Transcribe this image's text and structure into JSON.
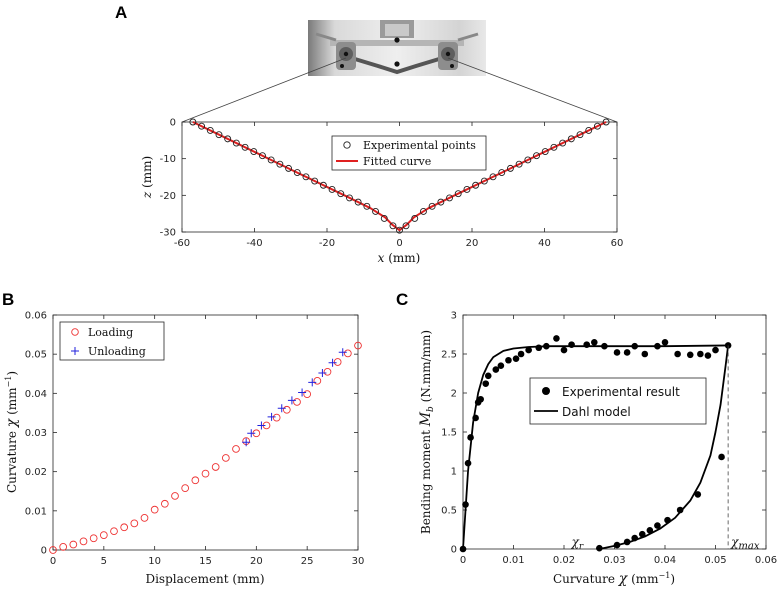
{
  "panels": {
    "a": "A",
    "b": "B",
    "c": "C"
  },
  "chart_data": [
    {
      "id": "A",
      "type": "scatter",
      "title": "",
      "xlabel_var": "x",
      "xlabel_unit": " (mm)",
      "ylabel_var": "z",
      "ylabel_unit": " (mm)",
      "xlim": [
        -60,
        60
      ],
      "ylim": [
        -30,
        0
      ],
      "xticks": [
        -60,
        -40,
        -20,
        0,
        20,
        40,
        60
      ],
      "yticks": [
        0,
        -10,
        -20,
        -30
      ],
      "legend": [
        "Experimental points",
        "Fitted curve"
      ],
      "series": [
        {
          "name": "Experimental points",
          "kind": "marker-circle",
          "color": "#222222",
          "x": [
            -57,
            -54.6,
            -52.2,
            -49.8,
            -47.4,
            -45,
            -42.6,
            -40.2,
            -37.8,
            -35.4,
            -33,
            -30.6,
            -28.2,
            -25.8,
            -23.4,
            -21,
            -18.6,
            -16.2,
            -13.8,
            -11.4,
            -9,
            -6.6,
            -4.2,
            -1.8,
            0,
            1.8,
            4.2,
            6.6,
            9,
            11.4,
            13.8,
            16.2,
            18.6,
            21,
            23.4,
            25.8,
            28.2,
            30.6,
            33,
            35.4,
            37.8,
            40.2,
            42.6,
            45,
            47.4,
            49.8,
            52.2,
            54.6,
            57
          ],
          "y": [
            0,
            -1.15,
            -2.3,
            -3.45,
            -4.6,
            -5.75,
            -6.9,
            -8.05,
            -9.2,
            -10.35,
            -11.5,
            -12.65,
            -13.8,
            -14.95,
            -16.1,
            -17.25,
            -18.4,
            -19.55,
            -20.7,
            -21.85,
            -23.0,
            -24.4,
            -26.3,
            -28.3,
            -29.5,
            -28.3,
            -26.3,
            -24.4,
            -23.0,
            -21.85,
            -20.7,
            -19.55,
            -18.4,
            -17.25,
            -16.1,
            -14.95,
            -13.8,
            -12.65,
            -11.5,
            -10.35,
            -9.2,
            -8.05,
            -6.9,
            -5.75,
            -4.6,
            -3.45,
            -2.3,
            -1.15,
            0
          ]
        },
        {
          "name": "Fitted curve",
          "kind": "line",
          "color": "#e02020",
          "x": [
            -57,
            -45,
            -30,
            -15,
            -8,
            -4,
            -2,
            0,
            2,
            4,
            8,
            15,
            30,
            45,
            57
          ],
          "y": [
            0,
            -5.75,
            -12.95,
            -20.1,
            -23.5,
            -26.0,
            -28.0,
            -29.5,
            -28.0,
            -26.0,
            -23.5,
            -20.1,
            -12.95,
            -5.75,
            0
          ]
        }
      ]
    },
    {
      "id": "B",
      "type": "scatter",
      "title": "",
      "xlabel": "Displacement (mm)",
      "ylabel_text": "Curvature ",
      "ylabel_var": "χ",
      "ylabel_unit": " (mm",
      "ylabel_exp": "−1",
      "ylabel_close": ")",
      "xlim": [
        0,
        30
      ],
      "ylim": [
        0,
        0.06
      ],
      "xticks": [
        0,
        5,
        10,
        15,
        20,
        25,
        30
      ],
      "yticks": [
        0,
        0.01,
        0.02,
        0.03,
        0.04,
        0.05,
        0.06
      ],
      "xtick_labels": [
        "0",
        "5",
        "10",
        "15",
        "20",
        "25",
        "30"
      ],
      "ytick_labels": [
        "0",
        "0.01",
        "0.02",
        "0.03",
        "0.04",
        "0.05",
        "0.06"
      ],
      "legend": [
        "Loading",
        "Unloading"
      ],
      "series": [
        {
          "name": "Loading",
          "kind": "marker-circle",
          "color": "#ee3333",
          "x": [
            0,
            1,
            2,
            3,
            4,
            5,
            6,
            7,
            8,
            9,
            10,
            11,
            12,
            13,
            14,
            15,
            16,
            17,
            18,
            19,
            20,
            21,
            22,
            23,
            24,
            25,
            26,
            27,
            28,
            29,
            30
          ],
          "y": [
            0,
            0.0008,
            0.0014,
            0.0022,
            0.003,
            0.0038,
            0.0048,
            0.0058,
            0.0068,
            0.0082,
            0.0103,
            0.0118,
            0.0138,
            0.0158,
            0.0178,
            0.0195,
            0.0212,
            0.0235,
            0.0258,
            0.0278,
            0.0298,
            0.0318,
            0.0338,
            0.0358,
            0.0378,
            0.0398,
            0.0432,
            0.0455,
            0.048,
            0.0502,
            0.0522
          ]
        },
        {
          "name": "Unloading",
          "kind": "marker-plus",
          "color": "#2222dd",
          "x": [
            19,
            19.5,
            20.5,
            21.5,
            22.5,
            23.5,
            24.5,
            25.5,
            26.5,
            27.5,
            28.5
          ],
          "y": [
            0.0275,
            0.0298,
            0.0318,
            0.034,
            0.0362,
            0.0382,
            0.0402,
            0.0428,
            0.0452,
            0.0478,
            0.0505
          ]
        }
      ]
    },
    {
      "id": "C",
      "type": "scatter",
      "title": "",
      "xlabel_text": "Curvature ",
      "xlabel_var": "χ",
      "xlabel_unit": " (mm",
      "xlabel_exp": "−1",
      "xlabel_close": ")",
      "ylabel_text": "Bending moment ",
      "ylabel_var": "M",
      "ylabel_sub": "b",
      "ylabel_unit": " (N.mm/mm)",
      "xlim": [
        0,
        0.06
      ],
      "ylim": [
        0,
        3
      ],
      "xticks": [
        0,
        0.01,
        0.02,
        0.03,
        0.04,
        0.05,
        0.06
      ],
      "yticks": [
        0,
        0.5,
        1,
        1.5,
        2,
        2.5,
        3
      ],
      "xtick_labels": [
        "0",
        "0.01",
        "0.02",
        "0.03",
        "0.04",
        "0.05",
        "0.06"
      ],
      "ytick_labels": [
        "0",
        "0.5",
        "1",
        "1.5",
        "2",
        "2.5",
        "3"
      ],
      "legend": [
        "Experimental result",
        "Dahl model"
      ],
      "annotations": {
        "chi_r": "χ",
        "chi_r_sub": "r",
        "chi_max": "χ",
        "chi_max_sub": "max",
        "chi_max_x": 0.0525
      },
      "series": [
        {
          "name": "Experimental result",
          "kind": "marker-dot",
          "color": "#000000",
          "x": [
            0,
            0.0005,
            0.001,
            0.0015,
            0.0025,
            0.003,
            0.0035,
            0.0045,
            0.005,
            0.0065,
            0.0075,
            0.009,
            0.0105,
            0.0115,
            0.013,
            0.015,
            0.0165,
            0.0185,
            0.02,
            0.0215,
            0.0245,
            0.026,
            0.028,
            0.0305,
            0.0325,
            0.034,
            0.036,
            0.0385,
            0.04,
            0.0425,
            0.045,
            0.047,
            0.0485,
            0.05,
            0.0525,
            0.027,
            0.0305,
            0.0325,
            0.034,
            0.0355,
            0.037,
            0.0385,
            0.0405,
            0.043,
            0.0465,
            0.0512
          ],
          "y": [
            0,
            0.57,
            1.1,
            1.43,
            1.68,
            1.88,
            1.92,
            2.12,
            2.22,
            2.3,
            2.35,
            2.42,
            2.44,
            2.5,
            2.55,
            2.58,
            2.6,
            2.7,
            2.55,
            2.62,
            2.62,
            2.65,
            2.6,
            2.52,
            2.52,
            2.6,
            2.5,
            2.6,
            2.65,
            2.5,
            2.49,
            2.5,
            2.48,
            2.55,
            2.61,
            0.01,
            0.05,
            0.09,
            0.14,
            0.19,
            0.24,
            0.3,
            0.37,
            0.5,
            0.7,
            1.18
          ]
        },
        {
          "name": "Dahl model loading",
          "kind": "line",
          "color": "#000000",
          "x": [
            0,
            0.001,
            0.002,
            0.003,
            0.004,
            0.005,
            0.006,
            0.008,
            0.01,
            0.013,
            0.017,
            0.022,
            0.03,
            0.04,
            0.0525
          ],
          "y": [
            0,
            1.0,
            1.62,
            2.0,
            2.23,
            2.37,
            2.46,
            2.54,
            2.57,
            2.59,
            2.6,
            2.6,
            2.6,
            2.6,
            2.61
          ]
        },
        {
          "name": "Dahl model unloading",
          "kind": "line",
          "color": "#000000",
          "x": [
            0.027,
            0.03,
            0.033,
            0.036,
            0.039,
            0.042,
            0.045,
            0.047,
            0.049,
            0.05,
            0.051,
            0.0515,
            0.052,
            0.0525
          ],
          "y": [
            0,
            0.04,
            0.09,
            0.16,
            0.26,
            0.4,
            0.62,
            0.85,
            1.2,
            1.5,
            1.85,
            2.1,
            2.35,
            2.61
          ]
        }
      ]
    }
  ]
}
